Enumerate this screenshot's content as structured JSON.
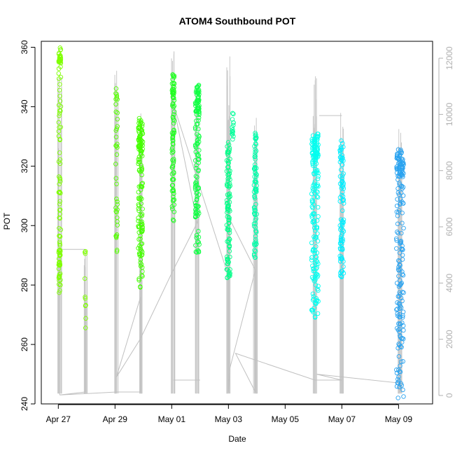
{
  "chart_data": {
    "type": "scatter",
    "title": "ATOM4 Southbound POT",
    "xlabel": "Date",
    "ylabel": "POT",
    "ylim": [
      240,
      362
    ],
    "y_ticks": [
      240,
      260,
      280,
      300,
      320,
      340,
      360
    ],
    "x_ticks": [
      {
        "day": 0,
        "label": "Apr 27"
      },
      {
        "day": 2,
        "label": "Apr 29"
      },
      {
        "day": 4,
        "label": "May 01"
      },
      {
        "day": 6,
        "label": "May 03"
      },
      {
        "day": 8,
        "label": "May 05"
      },
      {
        "day": 10,
        "label": "May 07"
      },
      {
        "day": 12,
        "label": "May 09"
      }
    ],
    "xlim_days": [
      -0.6,
      13.2
    ],
    "secondary_axis": {
      "ticks": [
        0,
        2000,
        4000,
        6000,
        8000,
        10000,
        12000
      ],
      "ylim": [
        -300,
        12600
      ],
      "color": "#b0b0b0"
    },
    "series_colors": [
      "#7fff00",
      "#55ff00",
      "#22ff22",
      "#00ff66",
      "#00ffbb",
      "#00ffff",
      "#00e5ff",
      "#2aa3f0"
    ],
    "clusters": [
      {
        "day": 0.05,
        "width": 0.04,
        "ymin": 277,
        "ymax": 360,
        "color": "#7fff00",
        "n": 70,
        "dense_low": [
          278,
          292
        ],
        "dense_high": [
          355,
          360
        ]
      },
      {
        "day": 0.95,
        "width": 0.02,
        "ymin": 264,
        "ymax": 292,
        "color": "#7fff00",
        "n": 10
      },
      {
        "day": 2.05,
        "width": 0.04,
        "ymin": 291,
        "ymax": 347,
        "color": "#55ff00",
        "n": 40
      },
      {
        "day": 2.9,
        "width": 0.08,
        "ymin": 279,
        "ymax": 337,
        "color": "#44ff00",
        "n": 110,
        "dense_high": [
          325,
          334
        ]
      },
      {
        "day": 4.05,
        "width": 0.04,
        "ymin": 300,
        "ymax": 351,
        "color": "#22ff22",
        "n": 70,
        "dense_high": [
          340,
          351
        ]
      },
      {
        "day": 4.9,
        "width": 0.07,
        "ymin": 290,
        "ymax": 348,
        "color": "#11ff44",
        "n": 110,
        "dense_high": [
          338,
          347
        ]
      },
      {
        "day": 6.0,
        "width": 0.06,
        "ymin": 282,
        "ymax": 328,
        "color": "#00ff88",
        "n": 100
      },
      {
        "day": 6.15,
        "width": 0.03,
        "ymin": 329,
        "ymax": 338,
        "color": "#00ff99",
        "n": 15
      },
      {
        "day": 6.95,
        "width": 0.05,
        "ymin": 289,
        "ymax": 332,
        "color": "#00ffaa",
        "n": 80
      },
      {
        "day": 9.05,
        "width": 0.12,
        "ymin": 269,
        "ymax": 332,
        "color": "#00fff0",
        "n": 140,
        "dense_high": [
          323,
          330
        ]
      },
      {
        "day": 10.0,
        "width": 0.07,
        "ymin": 281,
        "ymax": 329,
        "color": "#00eeff",
        "n": 90
      },
      {
        "day": 12.05,
        "width": 0.13,
        "ymin": 242,
        "ymax": 326,
        "color": "#2aa3f0",
        "n": 150,
        "dense_high": [
          316,
          325
        ]
      }
    ],
    "grey_spikes": [
      {
        "day": 0.05,
        "top": 351
      },
      {
        "day": 0.95,
        "top": 292
      },
      {
        "day": 2.05,
        "top": 355
      },
      {
        "day": 2.9,
        "top": 340
      },
      {
        "day": 4.05,
        "top": 360
      },
      {
        "day": 4.9,
        "top": 348
      },
      {
        "day": 6.0,
        "top": 357
      },
      {
        "day": 6.95,
        "top": 337
      },
      {
        "day": 9.05,
        "top": 355
      },
      {
        "day": 10.0,
        "top": 338
      },
      {
        "day": 12.05,
        "top": 334
      }
    ],
    "grey_line": [
      [
        0.05,
        243
      ],
      [
        0.05,
        292
      ],
      [
        0.95,
        292
      ],
      [
        0.95,
        244
      ],
      [
        0.05,
        243
      ],
      [
        2.05,
        244
      ],
      [
        2.9,
        244
      ],
      [
        2.9,
        276
      ],
      [
        2.05,
        249
      ],
      [
        2.9,
        262
      ],
      [
        4.05,
        285
      ],
      [
        4.9,
        301
      ],
      [
        4.05,
        341
      ],
      [
        6.0,
        283
      ],
      [
        6.0,
        244
      ],
      [
        6.05,
        252
      ],
      [
        6.95,
        285
      ],
      [
        6.95,
        244
      ],
      [
        6.25,
        257
      ],
      [
        9.05,
        248
      ],
      [
        10.0,
        248
      ],
      [
        9.1,
        250
      ],
      [
        12.05,
        247
      ],
      [
        12.05,
        244
      ]
    ],
    "grey_segments": [
      [
        [
          4.05,
          248
        ],
        [
          5.0,
          248
        ]
      ],
      [
        [
          9.2,
          337
        ],
        [
          10.0,
          337
        ]
      ],
      [
        [
          6.0,
          303
        ],
        [
          6.95,
          285
        ]
      ]
    ]
  }
}
